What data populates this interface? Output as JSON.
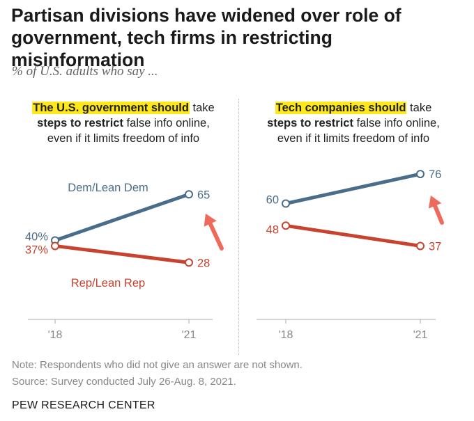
{
  "header": {
    "title": "Partisan divisions have widened over role of government, tech firms in restricting misinformation",
    "subtitle": "% of U.S. adults who say ..."
  },
  "panels": [
    {
      "highlight": "The U.S. government should",
      "rest1": " take",
      "bold2": "steps to restrict",
      "rest2": " false info online,",
      "line3": "even if it limits freedom of info"
    },
    {
      "highlight": "Tech companies should",
      "rest1": " take",
      "bold2": "steps to restrict",
      "rest2": " false info online,",
      "line3": "even if it limits freedom of info"
    }
  ],
  "chart_data": [
    {
      "type": "line",
      "title": "The U.S. government should take steps to restrict false info online, even if it limits freedom of info",
      "x": [
        "'18",
        "'21"
      ],
      "series": [
        {
          "name": "Dem/Lean Dem",
          "values": [
            40,
            65
          ],
          "labels": [
            "40%",
            "65"
          ],
          "color": "#4a6e8a"
        },
        {
          "name": "Rep/Lean Rep",
          "values": [
            37,
            28
          ],
          "labels": [
            "37%",
            "28"
          ],
          "color": "#c8432f"
        }
      ],
      "annotation": "arrow-pointing-to-dem-2021"
    },
    {
      "type": "line",
      "title": "Tech companies should take steps to restrict false info online, even if it limits freedom of info",
      "x": [
        "'18",
        "'21"
      ],
      "series": [
        {
          "values": [
            60,
            76
          ],
          "labels": [
            "60",
            "76"
          ],
          "color": "#4a6e8a"
        },
        {
          "values": [
            48,
            37
          ],
          "labels": [
            "48",
            "37"
          ],
          "color": "#c8432f"
        }
      ],
      "annotation": "arrow-pointing-to-dem-2021"
    }
  ],
  "colors": {
    "dem": "#4a6e8a",
    "rep": "#c8432f",
    "highlight": "#ffe81a",
    "arrow": "#ef6a5a"
  },
  "notes": {
    "note": "Note: Respondents who did not give an answer are not shown.",
    "source": "Source: Survey conducted July 26-Aug. 8, 2021."
  },
  "brand": "PEW RESEARCH CENTER"
}
